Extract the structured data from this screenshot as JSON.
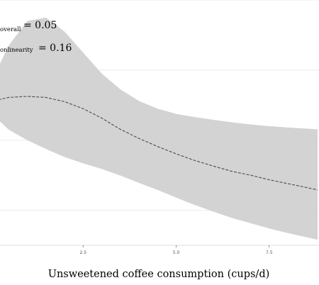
{
  "chart_data": {
    "type": "line",
    "title": "",
    "xlabel": "Unsweetened coffee consumption (cups/d)",
    "ylabel": "",
    "xlim": [
      0,
      8.8
    ],
    "xticks": [
      {
        "value": 2.5,
        "label": "2.5"
      },
      {
        "value": 5.0,
        "label": "5.0"
      },
      {
        "value": 7.5,
        "label": "7.5"
      }
    ],
    "grid": "horizontal",
    "ylim": [
      0.6,
      1.3
    ],
    "series": [
      {
        "x": [
          0,
          0.5,
          1.0,
          1.5,
          2.0,
          2.5,
          3.0,
          3.5,
          4.0,
          4.5,
          5.0,
          5.5,
          6.0,
          6.5,
          7.0,
          7.5,
          8.0,
          8.5,
          8.8
        ],
        "y": [
          1.01,
          1.022,
          1.025,
          1.022,
          1.01,
          0.99,
          0.963,
          0.931,
          0.905,
          0.882,
          0.861,
          0.842,
          0.826,
          0.811,
          0.8,
          0.787,
          0.776,
          0.765,
          0.758
        ],
        "ci_lower": [
          0.98,
          0.93,
          0.9,
          0.875,
          0.852,
          0.834,
          0.818,
          0.799,
          0.778,
          0.758,
          0.736,
          0.715,
          0.696,
          0.678,
          0.663,
          0.648,
          0.635,
          0.623,
          0.616
        ],
        "ci_upper": [
          1.06,
          1.17,
          1.24,
          1.25,
          1.21,
          1.15,
          1.09,
          1.045,
          1.012,
          0.99,
          0.975,
          0.966,
          0.958,
          0.951,
          0.945,
          0.94,
          0.936,
          0.933,
          0.931
        ]
      }
    ],
    "annotations": [
      {
        "text_prefix": "overall",
        "text_value": "= 0.05"
      },
      {
        "text_prefix": "onlinearity",
        "text_value": "= 0.16"
      }
    ],
    "colors": {
      "ci_band": "#d3d3d3",
      "line": "#4a4a4a",
      "grid": "#ebebeb",
      "tick": "#777777"
    }
  }
}
